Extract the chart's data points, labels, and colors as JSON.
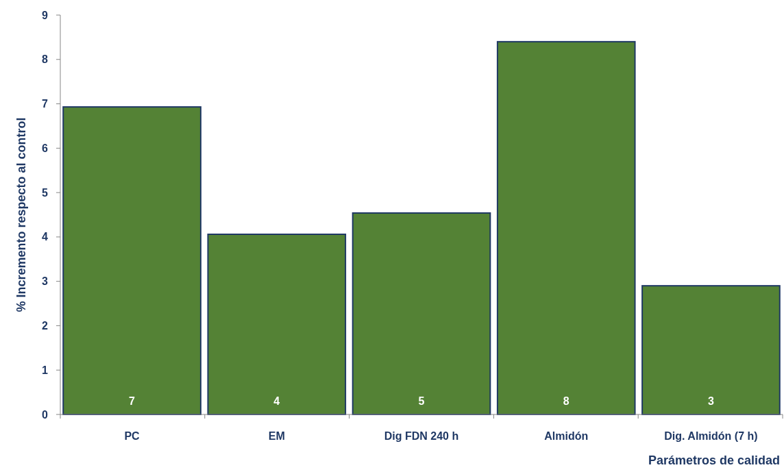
{
  "chart_data": {
    "type": "bar",
    "xlabel": "Parámetros de calidad",
    "ylabel": "% Incremento respecto al control",
    "categories": [
      "PC",
      "EM",
      "Dig FDN 240 h",
      "Almidón",
      "Dig. Almidón (7 h)"
    ],
    "values": [
      6.93,
      4.06,
      4.54,
      8.4,
      2.9
    ],
    "value_labels": [
      "7",
      "4",
      "5",
      "8",
      "3"
    ],
    "color": "#548235",
    "ylim": [
      0,
      9
    ],
    "yticks": [
      0,
      1,
      2,
      3,
      4,
      5,
      6,
      7,
      8,
      9
    ],
    "grid": false
  }
}
